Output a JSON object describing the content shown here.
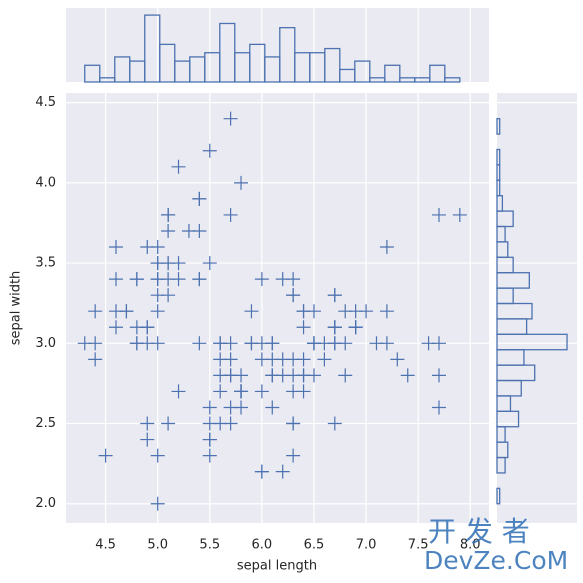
{
  "chart_data": [
    {
      "type": "scatter",
      "x_label": "sepal length",
      "y_label": "sepal width",
      "marker": "+",
      "color": "#4c72b0",
      "grid": true,
      "x": [
        5.1,
        4.9,
        4.7,
        4.6,
        5.0,
        5.4,
        4.6,
        5.0,
        4.4,
        4.9,
        5.4,
        4.8,
        4.8,
        4.3,
        5.8,
        5.7,
        5.4,
        5.1,
        5.7,
        5.1,
        5.4,
        5.1,
        4.6,
        5.1,
        4.8,
        5.0,
        5.0,
        5.2,
        5.2,
        4.7,
        4.8,
        5.4,
        5.2,
        5.5,
        4.9,
        5.0,
        5.5,
        4.9,
        4.4,
        5.1,
        5.0,
        4.5,
        4.4,
        5.0,
        5.1,
        4.8,
        5.1,
        4.6,
        5.3,
        5.0,
        7.0,
        6.4,
        6.9,
        5.5,
        6.5,
        5.7,
        6.3,
        4.9,
        6.6,
        5.2,
        5.0,
        5.9,
        6.0,
        6.1,
        5.6,
        6.7,
        5.6,
        5.8,
        6.2,
        5.6,
        5.9,
        6.1,
        6.3,
        6.1,
        6.4,
        6.6,
        6.8,
        6.7,
        6.0,
        5.7,
        5.5,
        5.5,
        5.8,
        6.0,
        5.4,
        6.0,
        6.7,
        6.3,
        5.6,
        5.5,
        5.5,
        6.1,
        5.8,
        5.0,
        5.6,
        5.7,
        5.7,
        6.2,
        5.1,
        5.7,
        6.3,
        5.8,
        7.1,
        6.3,
        6.5,
        7.6,
        4.9,
        7.3,
        6.7,
        7.2,
        6.5,
        6.4,
        6.8,
        5.7,
        5.8,
        6.4,
        6.5,
        7.7,
        7.7,
        6.0,
        6.9,
        5.6,
        7.7,
        6.3,
        6.7,
        7.2,
        6.2,
        6.1,
        6.4,
        7.2,
        7.4,
        7.9,
        6.4,
        6.3,
        6.1,
        7.7,
        6.3,
        6.4,
        6.0,
        6.9,
        6.7,
        6.9,
        5.8,
        6.8,
        6.7,
        6.7,
        6.3,
        6.5,
        6.2,
        5.9
      ],
      "y": [
        3.5,
        3.0,
        3.2,
        3.1,
        3.6,
        3.9,
        3.4,
        3.4,
        2.9,
        3.1,
        3.7,
        3.4,
        3.0,
        3.0,
        4.0,
        4.4,
        3.9,
        3.5,
        3.8,
        3.8,
        3.4,
        3.7,
        3.6,
        3.3,
        3.4,
        3.0,
        3.4,
        3.5,
        3.4,
        3.2,
        3.1,
        3.4,
        4.1,
        4.2,
        3.1,
        3.2,
        3.5,
        3.6,
        3.0,
        3.4,
        3.5,
        2.3,
        3.2,
        3.5,
        3.8,
        3.0,
        3.8,
        3.2,
        3.7,
        3.3,
        3.2,
        3.2,
        3.1,
        2.3,
        2.8,
        2.8,
        3.3,
        2.4,
        2.9,
        2.7,
        2.0,
        3.0,
        2.2,
        2.9,
        2.9,
        3.1,
        3.0,
        2.7,
        2.2,
        2.5,
        3.2,
        2.8,
        2.5,
        2.8,
        2.9,
        3.0,
        2.8,
        3.0,
        2.9,
        2.6,
        2.4,
        2.4,
        2.7,
        2.7,
        3.0,
        3.4,
        3.1,
        2.3,
        3.0,
        2.5,
        2.6,
        3.0,
        2.6,
        2.3,
        2.7,
        3.0,
        2.9,
        2.9,
        2.5,
        2.8,
        3.3,
        2.7,
        3.0,
        2.9,
        3.0,
        3.0,
        2.5,
        2.9,
        2.5,
        3.6,
        3.2,
        2.7,
        3.0,
        2.5,
        2.8,
        3.2,
        3.0,
        3.8,
        2.6,
        2.2,
        3.2,
        2.8,
        2.8,
        2.7,
        3.3,
        3.2,
        2.8,
        3.0,
        2.8,
        3.0,
        2.8,
        3.8,
        2.8,
        2.8,
        2.6,
        3.0,
        3.4,
        3.1,
        3.0,
        3.1,
        3.1,
        3.1,
        2.7,
        3.2,
        3.3,
        3.0,
        2.5,
        3.0,
        3.4,
        3.0
      ],
      "xlim": [
        4.12,
        8.18
      ],
      "ylim": [
        1.88,
        4.56
      ],
      "xticks": [
        4.5,
        {
          "value": 5,
          "label": "5.0"
        },
        5.5,
        {
          "value": 6,
          "label": "6.0"
        },
        6.5,
        {
          "value": 7,
          "label": "7.0"
        },
        7.5,
        {
          "value": 8,
          "label": "8.0"
        }
      ],
      "yticks": [
        {
          "value": 2,
          "label": "2.0"
        },
        2.5,
        {
          "value": 3,
          "label": "3.0"
        },
        3.5,
        {
          "value": 4,
          "label": "4.0"
        },
        4.5
      ]
    },
    {
      "type": "histogram",
      "orientation": "vertical",
      "color": "#4c72b0",
      "bins": [
        4.3,
        4.444,
        4.588,
        4.732,
        4.876,
        5.02,
        5.164,
        5.308,
        5.452,
        5.596,
        5.74,
        5.884,
        6.028,
        6.172,
        6.316,
        6.46,
        6.604,
        6.748,
        6.892,
        7.036,
        7.18,
        7.324,
        7.468,
        7.612,
        7.756,
        7.9
      ],
      "counts": [
        4,
        1,
        6,
        5,
        16,
        9,
        5,
        6,
        7,
        14,
        7,
        9,
        6,
        13,
        7,
        7,
        8,
        3,
        5,
        1,
        4,
        1,
        1,
        4,
        1
      ],
      "ylim": [
        0,
        17.7
      ]
    },
    {
      "type": "histogram",
      "orientation": "horizontal",
      "color": "#4c72b0",
      "bins": [
        2.0,
        2.096,
        2.192,
        2.288,
        2.384,
        2.48,
        2.576,
        2.672,
        2.768,
        2.864,
        2.96,
        3.056,
        3.152,
        3.248,
        3.344,
        3.44,
        3.536,
        3.632,
        3.728,
        3.824,
        3.92,
        4.016,
        4.112,
        4.208,
        4.304,
        4.4
      ],
      "counts": [
        1,
        0,
        3,
        4,
        3,
        8,
        5,
        9,
        14,
        10,
        26,
        11,
        13,
        6,
        12,
        6,
        4,
        3,
        6,
        2,
        1,
        1,
        1,
        0,
        1
      ],
      "xlim": [
        0,
        29.7
      ]
    }
  ],
  "watermark": [
    "开 发 者",
    "DevZe.CoM"
  ]
}
